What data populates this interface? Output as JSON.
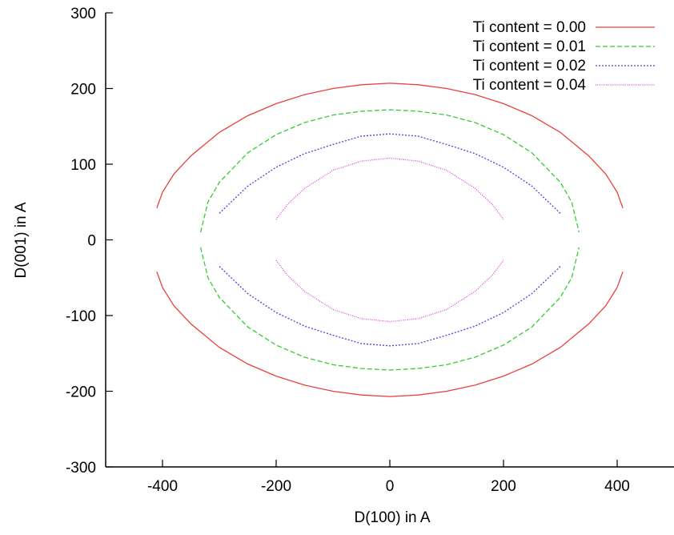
{
  "chart_data": {
    "type": "line",
    "title": "",
    "xlabel": "D(100) in A",
    "ylabel": "D(001) in A",
    "xlim": [
      -500,
      500
    ],
    "ylim": [
      -300,
      300
    ],
    "xticks": [
      -400,
      -200,
      0,
      200,
      400
    ],
    "yticks": [
      -300,
      -200,
      -100,
      0,
      100,
      200,
      300
    ],
    "xtick_labels": [
      "-400",
      "-200",
      "0",
      "200",
      "400"
    ],
    "ytick_labels": [
      "-300",
      "-200",
      "-100",
      "0",
      "100",
      "200",
      "300"
    ],
    "grid": false,
    "legend_position": "top-right",
    "series": [
      {
        "name": "Ti content = 0.00",
        "color": "#e8413c",
        "dash": "solid",
        "x": [
          -410,
          -400,
          -380,
          -350,
          -300,
          -250,
          -200,
          -150,
          -100,
          -50,
          0,
          50,
          100,
          150,
          200,
          250,
          300,
          350,
          380,
          400,
          410
        ],
        "y": [
          42,
          63,
          87,
          111,
          142,
          164,
          180,
          192,
          200,
          205,
          207,
          205,
          200,
          192,
          180,
          164,
          142,
          111,
          87,
          63,
          42
        ],
        "x_lower": [
          -410,
          -400,
          -380,
          -350,
          -300,
          -250,
          -200,
          -150,
          -100,
          -50,
          0,
          50,
          100,
          150,
          200,
          250,
          300,
          350,
          380,
          400,
          410
        ],
        "y_lower": [
          -42,
          -63,
          -87,
          -111,
          -142,
          -164,
          -180,
          -192,
          -200,
          -205,
          -207,
          -205,
          -200,
          -192,
          -180,
          -164,
          -142,
          -111,
          -87,
          -63,
          -42
        ]
      },
      {
        "name": "Ti content = 0.01",
        "color": "#33cc33",
        "dash": "dashed",
        "x": [
          -333,
          -320,
          -300,
          -250,
          -200,
          -150,
          -100,
          -50,
          0,
          50,
          100,
          150,
          200,
          250,
          300,
          320,
          333
        ],
        "y": [
          10,
          50,
          76,
          115,
          139,
          155,
          165,
          170,
          172,
          170,
          165,
          155,
          139,
          115,
          76,
          50,
          10
        ],
        "x_lower": [
          -333,
          -320,
          -300,
          -250,
          -200,
          -150,
          -100,
          -50,
          0,
          50,
          100,
          150,
          200,
          250,
          300,
          320,
          333
        ],
        "y_lower": [
          -10,
          -50,
          -76,
          -115,
          -139,
          -155,
          -165,
          -170,
          -172,
          -170,
          -165,
          -155,
          -139,
          -115,
          -76,
          -50,
          -10
        ]
      },
      {
        "name": "Ti content = 0.02",
        "color": "#4444dd",
        "dash": "dotted",
        "x": [
          -300,
          -250,
          -200,
          -150,
          -100,
          -50,
          0,
          50,
          100,
          150,
          200,
          250,
          300
        ],
        "y": [
          35,
          71,
          96,
          114,
          126,
          137,
          140,
          137,
          126,
          114,
          96,
          71,
          35
        ],
        "x_lower": [
          -300,
          -250,
          -200,
          -150,
          -100,
          -50,
          0,
          50,
          100,
          150,
          200,
          250,
          300
        ],
        "y_lower": [
          -35,
          -71,
          -96,
          -114,
          -126,
          -137,
          -140,
          -137,
          -126,
          -114,
          -96,
          -71,
          -35
        ]
      },
      {
        "name": "Ti content = 0.04",
        "color": "#dd44dd",
        "dash": "fine-dotted",
        "x": [
          -200,
          -180,
          -150,
          -100,
          -50,
          0,
          50,
          100,
          150,
          180,
          200
        ],
        "y": [
          27,
          47,
          68,
          92,
          104,
          108,
          104,
          92,
          68,
          47,
          27
        ],
        "x_lower": [
          -200,
          -180,
          -150,
          -100,
          -50,
          0,
          50,
          100,
          150,
          180,
          200
        ],
        "y_lower": [
          -27,
          -47,
          -68,
          -92,
          -104,
          -108,
          -104,
          -92,
          -68,
          -47,
          -27
        ]
      }
    ]
  }
}
